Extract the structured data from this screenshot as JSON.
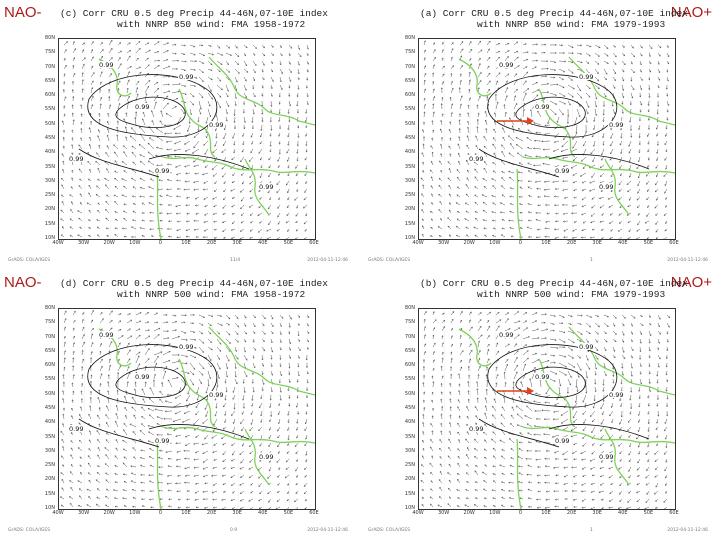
{
  "panels": [
    {
      "id": "c",
      "tag": "NAO-",
      "tag_side": "left",
      "title_line1": "(c) Corr CRU 0.5 deg Precip 44-46N,07-10E index",
      "title_line2": "with NNRP 850 wind: FMA 1958-1972",
      "has_arrow": false,
      "footer_left": "GrADS: COLA/IGES",
      "footer_mid": "11/4",
      "footer_right": "2012-04-11-12:46",
      "contour_label": "0.99"
    },
    {
      "id": "a",
      "tag": "NAO+",
      "tag_side": "right",
      "title_line1": "(a) Corr CRU 0.5 deg Precip 44-46N,07-10E index",
      "title_line2": "with NNRP 850 wind: FMA 1979-1993",
      "has_arrow": true,
      "footer_left": "GrADS: COLA/IGES",
      "footer_mid": "1",
      "footer_right": "2012-04-11-12:46",
      "contour_label": "0.99"
    },
    {
      "id": "d",
      "tag": "NAO-",
      "tag_side": "left",
      "title_line1": "(d) Corr CRU 0.5 deg Precip 44-46N,07-10E index",
      "title_line2": "with NNRP 500 wind: FMA 1958-1972",
      "has_arrow": false,
      "footer_left": "GrADS: COLA/IGES",
      "footer_mid": "0.9",
      "footer_right": "2012-04-11-12:46",
      "contour_label": "0.99"
    },
    {
      "id": "b",
      "tag": "NAO+",
      "tag_side": "right",
      "title_line1": "(b) Corr CRU 0.5 deg Precip 44-46N,07-10E index",
      "title_line2": "with NNRP 500 wind: FMA 1979-1993",
      "has_arrow": true,
      "footer_left": "GrADS: COLA/IGES",
      "footer_mid": "1",
      "footer_right": "2012-04-11-12:46",
      "contour_label": "0.99"
    }
  ],
  "map_axes": {
    "lat_labels": [
      "80N",
      "75N",
      "70N",
      "65N",
      "60N",
      "55N",
      "50N",
      "45N",
      "40N",
      "35N",
      "30N",
      "25N",
      "20N",
      "15N",
      "10N"
    ],
    "lon_labels": [
      "40W",
      "30W",
      "20W",
      "10W",
      "0",
      "10E",
      "20E",
      "30E",
      "40E",
      "50E",
      "60E"
    ]
  },
  "colors": {
    "tag_red": "#b01818",
    "coast_green": "#7fd25a",
    "contour_black": "#111111",
    "arrow_red": "#e0421a",
    "vector_gray": "#555555"
  }
}
